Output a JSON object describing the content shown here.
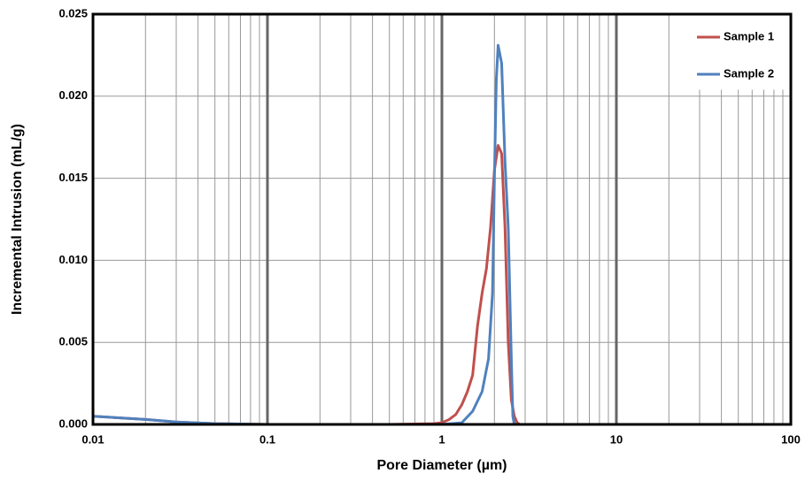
{
  "chart_data": {
    "type": "line",
    "x_label": "Pore Diameter  (µm)",
    "y_label": "Incremental Intrusion  (mL/g)",
    "x_log": true,
    "xlim": [
      0.01,
      100
    ],
    "xticks": [
      0.01,
      0.1,
      1,
      10,
      100
    ],
    "x_minor_ticks": [
      0.02,
      0.03,
      0.04,
      0.05,
      0.06,
      0.07,
      0.08,
      0.09,
      0.2,
      0.3,
      0.4,
      0.5,
      0.6,
      0.7,
      0.8,
      0.9,
      2,
      3,
      4,
      5,
      6,
      7,
      8,
      9,
      20,
      30,
      40,
      50,
      60,
      70,
      80,
      90
    ],
    "ylim": [
      0,
      0.025
    ],
    "yticks": [
      {
        "value": 0,
        "label": "0.000"
      },
      {
        "value": 0.005,
        "label": "0.005"
      },
      {
        "value": 0.01,
        "label": "0.010"
      },
      {
        "value": 0.015,
        "label": "0.015"
      },
      {
        "value": 0.02,
        "label": "0.020"
      },
      {
        "value": 0.025,
        "label": "0.025"
      }
    ],
    "grid": true,
    "legend": "upper right",
    "series": [
      {
        "name": "Sample 1",
        "color": "#c0504d",
        "x": [
          0.01,
          0.02,
          0.03,
          0.05,
          0.1,
          0.5,
          0.9,
          1.0,
          1.1,
          1.2,
          1.3,
          1.4,
          1.5,
          1.6,
          1.7,
          1.8,
          1.9,
          2.0,
          2.1,
          2.2,
          2.3,
          2.4,
          2.5,
          2.6,
          2.7,
          2.8,
          100
        ],
        "values": [
          0.0005,
          0.0003,
          0.00015,
          5e-05,
          0,
          0,
          5e-05,
          0.0001,
          0.0003,
          0.0006,
          0.0012,
          0.002,
          0.003,
          0.006,
          0.008,
          0.0095,
          0.012,
          0.0155,
          0.017,
          0.0165,
          0.012,
          0.005,
          0.0015,
          0.0005,
          0.0001,
          0,
          0
        ]
      },
      {
        "name": "Sample 2",
        "color": "#4f81bd",
        "x": [
          0.01,
          0.02,
          0.03,
          0.05,
          0.1,
          1.0,
          1.3,
          1.5,
          1.7,
          1.85,
          1.95,
          2.0,
          2.05,
          2.1,
          2.2,
          2.3,
          2.4,
          2.5,
          2.55,
          2.6,
          100
        ],
        "values": [
          0.0005,
          0.0003,
          0.00015,
          5e-05,
          0,
          0,
          0.0001,
          0.0008,
          0.002,
          0.004,
          0.008,
          0.015,
          0.021,
          0.0231,
          0.022,
          0.016,
          0.012,
          0.004,
          0.0005,
          0,
          0
        ]
      }
    ]
  }
}
